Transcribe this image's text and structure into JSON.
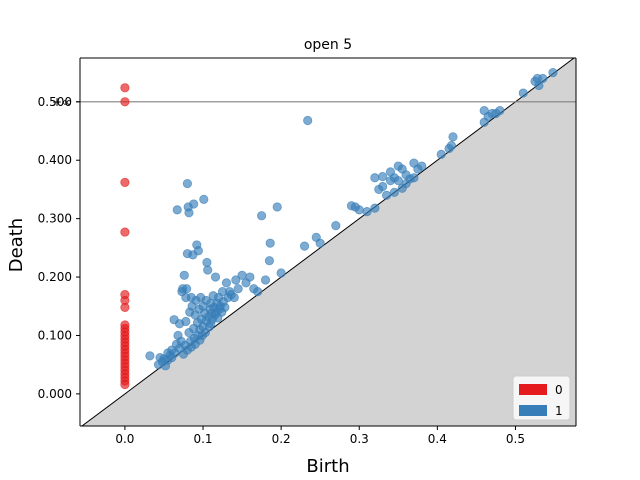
{
  "chart_data": {
    "type": "scatter",
    "title": "open 5",
    "xlabel": "Birth",
    "ylabel": "Death",
    "xlim": [
      -0.0575,
      0.5775
    ],
    "ylim": [
      -0.055,
      0.575
    ],
    "x_ticks": [
      0.0,
      0.1,
      0.2,
      0.3,
      0.4,
      0.5
    ],
    "x_tick_labels": [
      "0.0",
      "0.1",
      "0.2",
      "0.3",
      "0.4",
      "0.5"
    ],
    "y_ticks": [
      0.0,
      0.1,
      0.2,
      0.3,
      0.4,
      0.5
    ],
    "y_tick_labels": [
      "0.000",
      "0.100",
      "0.200",
      "0.300",
      "0.400",
      "0.500"
    ],
    "infinity_label": "+∞",
    "infinity_y": 0.5,
    "grid": false,
    "legend_position": "bottom-right",
    "series": [
      {
        "name": "0",
        "color": "#e41a1c",
        "points": [
          [
            0,
            0.5
          ],
          [
            0,
            0.524
          ],
          [
            0,
            0.362
          ],
          [
            0,
            0.277
          ],
          [
            0,
            0.17
          ],
          [
            0,
            0.16
          ],
          [
            0,
            0.148
          ],
          [
            0,
            0.118
          ],
          [
            0,
            0.112
          ],
          [
            0,
            0.106
          ],
          [
            0,
            0.1
          ],
          [
            0,
            0.094
          ],
          [
            0,
            0.088
          ],
          [
            0,
            0.082
          ],
          [
            0,
            0.076
          ],
          [
            0,
            0.07
          ],
          [
            0,
            0.064
          ],
          [
            0,
            0.058
          ],
          [
            0,
            0.052
          ],
          [
            0,
            0.046
          ],
          [
            0,
            0.04
          ],
          [
            0,
            0.034
          ],
          [
            0,
            0.028
          ],
          [
            0,
            0.022
          ],
          [
            0,
            0.016
          ]
        ]
      },
      {
        "name": "1",
        "color": "#377eb8",
        "points": [
          [
            0.032,
            0.065
          ],
          [
            0.043,
            0.05
          ],
          [
            0.045,
            0.062
          ],
          [
            0.048,
            0.055
          ],
          [
            0.05,
            0.06
          ],
          [
            0.052,
            0.048
          ],
          [
            0.055,
            0.058
          ],
          [
            0.055,
            0.07
          ],
          [
            0.058,
            0.066
          ],
          [
            0.06,
            0.075
          ],
          [
            0.06,
            0.062
          ],
          [
            0.063,
            0.127
          ],
          [
            0.064,
            0.07
          ],
          [
            0.066,
            0.085
          ],
          [
            0.067,
            0.315
          ],
          [
            0.068,
            0.1
          ],
          [
            0.07,
            0.078
          ],
          [
            0.07,
            0.12
          ],
          [
            0.072,
            0.09
          ],
          [
            0.073,
            0.175
          ],
          [
            0.074,
            0.18
          ],
          [
            0.075,
            0.068
          ],
          [
            0.076,
            0.203
          ],
          [
            0.077,
            0.083
          ],
          [
            0.078,
            0.165
          ],
          [
            0.078,
            0.124
          ],
          [
            0.079,
            0.18
          ],
          [
            0.08,
            0.36
          ],
          [
            0.08,
            0.075
          ],
          [
            0.08,
            0.24
          ],
          [
            0.081,
            0.32
          ],
          [
            0.082,
            0.31
          ],
          [
            0.082,
            0.105
          ],
          [
            0.083,
            0.14
          ],
          [
            0.084,
            0.09
          ],
          [
            0.085,
            0.165
          ],
          [
            0.085,
            0.08
          ],
          [
            0.086,
            0.15
          ],
          [
            0.087,
            0.238
          ],
          [
            0.088,
            0.325
          ],
          [
            0.088,
            0.112
          ],
          [
            0.089,
            0.095
          ],
          [
            0.09,
            0.085
          ],
          [
            0.09,
            0.135
          ],
          [
            0.091,
            0.16
          ],
          [
            0.092,
            0.255
          ],
          [
            0.093,
            0.1
          ],
          [
            0.093,
            0.122
          ],
          [
            0.094,
            0.245
          ],
          [
            0.095,
            0.145
          ],
          [
            0.096,
            0.092
          ],
          [
            0.096,
            0.11
          ],
          [
            0.097,
            0.165
          ],
          [
            0.098,
            0.128
          ],
          [
            0.099,
            0.1
          ],
          [
            0.1,
            0.15
          ],
          [
            0.1,
            0.115
          ],
          [
            0.101,
            0.333
          ],
          [
            0.102,
            0.138
          ],
          [
            0.103,
            0.105
          ],
          [
            0.104,
            0.125
          ],
          [
            0.104,
            0.16
          ],
          [
            0.105,
            0.225
          ],
          [
            0.106,
            0.212
          ],
          [
            0.107,
            0.132
          ],
          [
            0.108,
            0.115
          ],
          [
            0.109,
            0.145
          ],
          [
            0.11,
            0.12
          ],
          [
            0.11,
            0.155
          ],
          [
            0.111,
            0.138
          ],
          [
            0.112,
            0.128
          ],
          [
            0.113,
            0.168
          ],
          [
            0.114,
            0.148
          ],
          [
            0.115,
            0.135
          ],
          [
            0.116,
            0.2
          ],
          [
            0.117,
            0.14
          ],
          [
            0.118,
            0.155
          ],
          [
            0.119,
            0.13
          ],
          [
            0.12,
            0.165
          ],
          [
            0.121,
            0.145
          ],
          [
            0.122,
            0.15
          ],
          [
            0.124,
            0.14
          ],
          [
            0.125,
            0.175
          ],
          [
            0.126,
            0.158
          ],
          [
            0.128,
            0.148
          ],
          [
            0.13,
            0.19
          ],
          [
            0.132,
            0.165
          ],
          [
            0.134,
            0.175
          ],
          [
            0.136,
            0.17
          ],
          [
            0.14,
            0.165
          ],
          [
            0.142,
            0.195
          ],
          [
            0.145,
            0.18
          ],
          [
            0.15,
            0.203
          ],
          [
            0.155,
            0.19
          ],
          [
            0.16,
            0.2
          ],
          [
            0.165,
            0.18
          ],
          [
            0.17,
            0.175
          ],
          [
            0.175,
            0.305
          ],
          [
            0.18,
            0.195
          ],
          [
            0.185,
            0.228
          ],
          [
            0.186,
            0.258
          ],
          [
            0.195,
            0.32
          ],
          [
            0.2,
            0.207
          ],
          [
            0.234,
            0.468
          ],
          [
            0.23,
            0.253
          ],
          [
            0.245,
            0.268
          ],
          [
            0.25,
            0.258
          ],
          [
            0.27,
            0.288
          ],
          [
            0.29,
            0.322
          ],
          [
            0.295,
            0.32
          ],
          [
            0.3,
            0.315
          ],
          [
            0.31,
            0.312
          ],
          [
            0.32,
            0.37
          ],
          [
            0.32,
            0.318
          ],
          [
            0.325,
            0.35
          ],
          [
            0.33,
            0.372
          ],
          [
            0.33,
            0.355
          ],
          [
            0.335,
            0.34
          ],
          [
            0.34,
            0.365
          ],
          [
            0.34,
            0.38
          ],
          [
            0.345,
            0.37
          ],
          [
            0.345,
            0.345
          ],
          [
            0.35,
            0.39
          ],
          [
            0.35,
            0.365
          ],
          [
            0.355,
            0.385
          ],
          [
            0.355,
            0.352
          ],
          [
            0.36,
            0.375
          ],
          [
            0.36,
            0.36
          ],
          [
            0.365,
            0.368
          ],
          [
            0.37,
            0.395
          ],
          [
            0.37,
            0.37
          ],
          [
            0.375,
            0.385
          ],
          [
            0.38,
            0.39
          ],
          [
            0.405,
            0.41
          ],
          [
            0.415,
            0.42
          ],
          [
            0.418,
            0.425
          ],
          [
            0.42,
            0.44
          ],
          [
            0.46,
            0.465
          ],
          [
            0.46,
            0.485
          ],
          [
            0.465,
            0.475
          ],
          [
            0.47,
            0.48
          ],
          [
            0.475,
            0.48
          ],
          [
            0.48,
            0.485
          ],
          [
            0.51,
            0.515
          ],
          [
            0.525,
            0.535
          ],
          [
            0.528,
            0.54
          ],
          [
            0.53,
            0.528
          ],
          [
            0.535,
            0.54
          ],
          [
            0.548,
            0.55
          ]
        ]
      }
    ]
  }
}
